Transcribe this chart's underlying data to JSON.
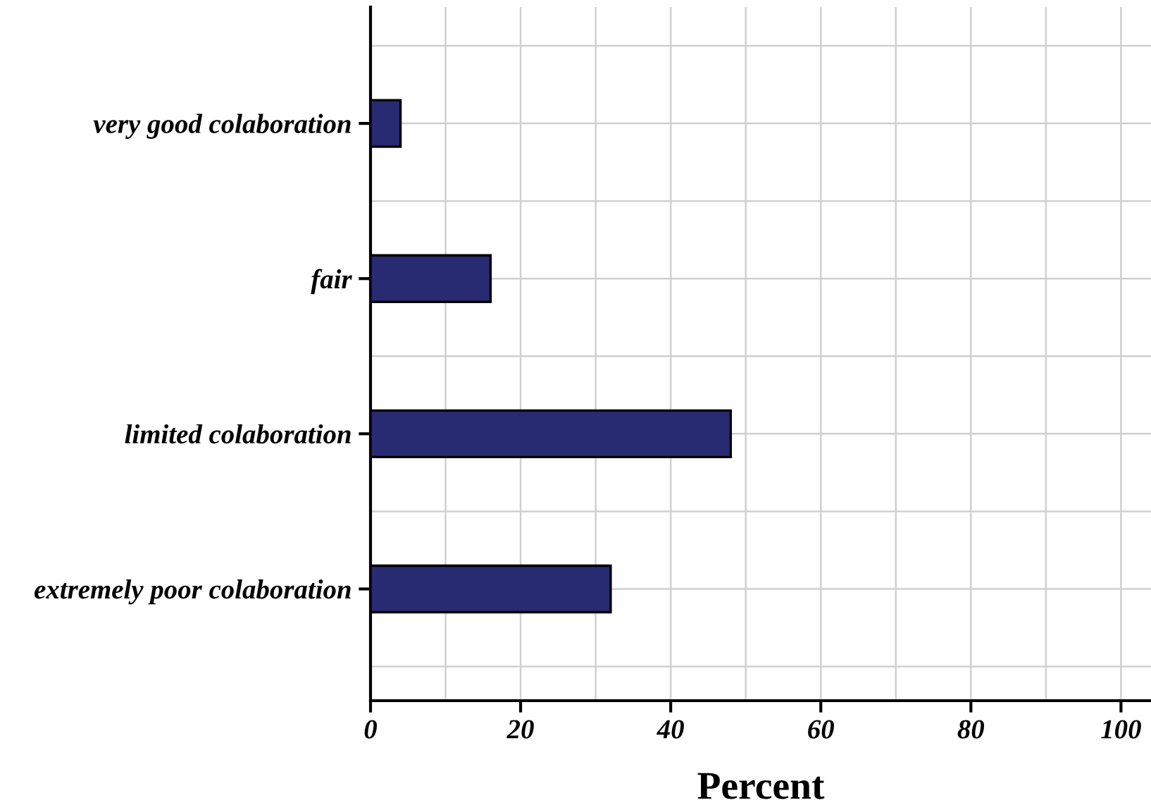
{
  "chart_data": {
    "type": "bar",
    "orientation": "horizontal",
    "xlabel": "Percent",
    "categories": [
      "very good colaboration",
      "fair",
      "limited colaboration",
      "extremely poor colaboration"
    ],
    "values": [
      4,
      16,
      48,
      32
    ],
    "color": "#282a72",
    "xlim": [
      0,
      104
    ],
    "xticks": [
      0,
      20,
      40,
      60,
      80,
      100
    ],
    "grid": true
  }
}
